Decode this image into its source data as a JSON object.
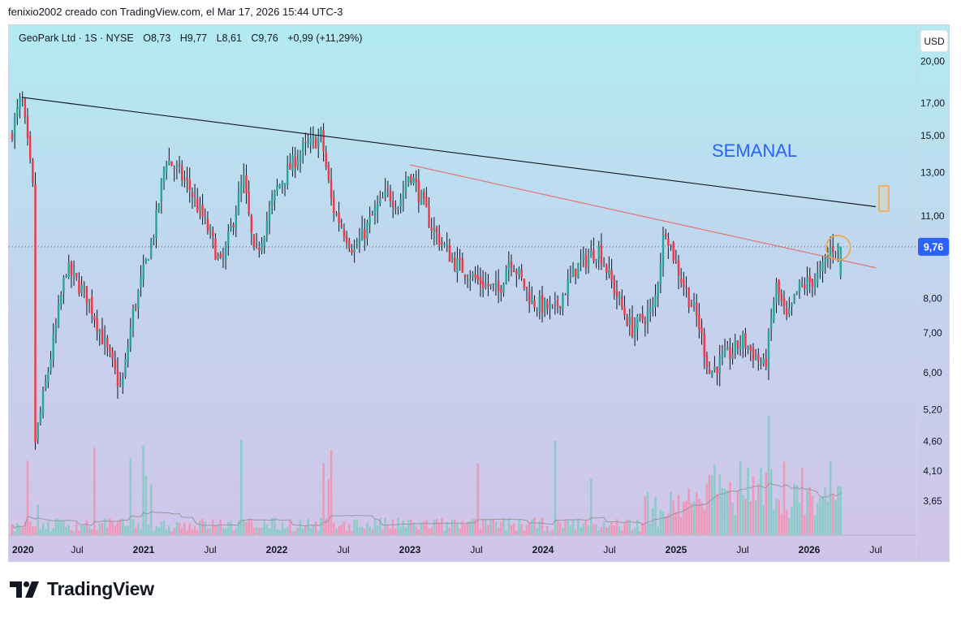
{
  "header": {
    "caption": "fenixio2002 creado con TradingView.com, el Mar 17, 2026 15:44 UTC-3"
  },
  "legend": {
    "symbol": "GeoPark Ltd · 1S · NYSE",
    "open": "O8,73",
    "high": "H9,77",
    "low": "L8,61",
    "close": "C9,76",
    "change": "+0,99 (+11,29%)"
  },
  "currency_button": "USD",
  "annotation": {
    "text": "SEMANAL",
    "color": "#2962ff"
  },
  "footer": {
    "brand": "TradingView",
    "logo_icon": "tradingview-logo-icon"
  },
  "colors": {
    "up": "#26a69a",
    "down": "#f23645",
    "wick": "#131722",
    "resistance": "#131722",
    "trend": "#e57373",
    "current": "#2962ff",
    "highlight": "#f7a33c"
  },
  "chart_data": {
    "type": "candlestick",
    "symbol": "GeoPark Ltd",
    "interval": "1S",
    "exchange": "NYSE",
    "scale": "log",
    "ylim": [
      3.2,
      23
    ],
    "y_ticks": [
      "20,00",
      "17,00",
      "15,00",
      "13,00",
      "11,00",
      "8,00",
      "7,00",
      "6,00",
      "5,20",
      "4,60",
      "4,10",
      "3,65"
    ],
    "x_ticks": [
      "2020",
      "Jul",
      "2021",
      "Jul",
      "2022",
      "Jul",
      "2023",
      "Jul",
      "2024",
      "Jul",
      "2025",
      "Jul",
      "2026",
      "Jul"
    ],
    "last_price_label": "9,76",
    "last_price": 9.76,
    "weeks": 323,
    "anchors": [
      {
        "date": "2020-01",
        "price": 15.0
      },
      {
        "date": "2020-02",
        "price": 17.4
      },
      {
        "date": "2020-03",
        "price": 12.3
      },
      {
        "date": "2020-03",
        "price": 4.6
      },
      {
        "date": "2020-05",
        "price": 7.0
      },
      {
        "date": "2020-06",
        "price": 9.0
      },
      {
        "date": "2020-08",
        "price": 8.0
      },
      {
        "date": "2020-10",
        "price": 6.3
      },
      {
        "date": "2020-11",
        "price": 5.6
      },
      {
        "date": "2020-12",
        "price": 7.5
      },
      {
        "date": "2021-02",
        "price": 10.5
      },
      {
        "date": "2021-03",
        "price": 13.8
      },
      {
        "date": "2021-05",
        "price": 12.4
      },
      {
        "date": "2021-07",
        "price": 10.2
      },
      {
        "date": "2021-08",
        "price": 9.0
      },
      {
        "date": "2021-10",
        "price": 12.7
      },
      {
        "date": "2021-11",
        "price": 9.3
      },
      {
        "date": "2022-01",
        "price": 12.2
      },
      {
        "date": "2022-03",
        "price": 14.0
      },
      {
        "date": "2022-05",
        "price": 15.0
      },
      {
        "date": "2022-06",
        "price": 11.4
      },
      {
        "date": "2022-08",
        "price": 9.6
      },
      {
        "date": "2022-10",
        "price": 11.3
      },
      {
        "date": "2022-11",
        "price": 12.0
      },
      {
        "date": "2022-12",
        "price": 11.5
      },
      {
        "date": "2023-01",
        "price": 13.1
      },
      {
        "date": "2023-03",
        "price": 10.5
      },
      {
        "date": "2023-05",
        "price": 9.2
      },
      {
        "date": "2023-07",
        "price": 8.6
      },
      {
        "date": "2023-09",
        "price": 8.2
      },
      {
        "date": "2023-10",
        "price": 9.4
      },
      {
        "date": "2023-12",
        "price": 7.9
      },
      {
        "date": "2024-02",
        "price": 7.6
      },
      {
        "date": "2024-04",
        "price": 9.0
      },
      {
        "date": "2024-06",
        "price": 9.7
      },
      {
        "date": "2024-08",
        "price": 7.8
      },
      {
        "date": "2024-09",
        "price": 7.1
      },
      {
        "date": "2024-11",
        "price": 7.7
      },
      {
        "date": "2024-12",
        "price": 10.6
      },
      {
        "date": "2025-01",
        "price": 9.1
      },
      {
        "date": "2025-03",
        "price": 7.3
      },
      {
        "date": "2025-04",
        "price": 6.0
      },
      {
        "date": "2025-06",
        "price": 6.5
      },
      {
        "date": "2025-07",
        "price": 6.8
      },
      {
        "date": "2025-09",
        "price": 6.1
      },
      {
        "date": "2025-10",
        "price": 8.4
      },
      {
        "date": "2025-11",
        "price": 7.3
      },
      {
        "date": "2025-12",
        "price": 8.3
      },
      {
        "date": "2026-01",
        "price": 8.5
      },
      {
        "date": "2026-02",
        "price": 8.77
      },
      {
        "date": "2026-03",
        "price": 9.76
      }
    ],
    "lines": [
      {
        "name": "resistance",
        "from": {
          "date": "2020-02",
          "price": 17.4
        },
        "to": {
          "date": "2026-07",
          "price": 11.4
        }
      },
      {
        "name": "trend",
        "from": {
          "date": "2023-01",
          "price": 13.4
        },
        "to": {
          "date": "2026-07",
          "price": 9.0
        }
      }
    ],
    "volume": {
      "moving_average": true
    }
  }
}
